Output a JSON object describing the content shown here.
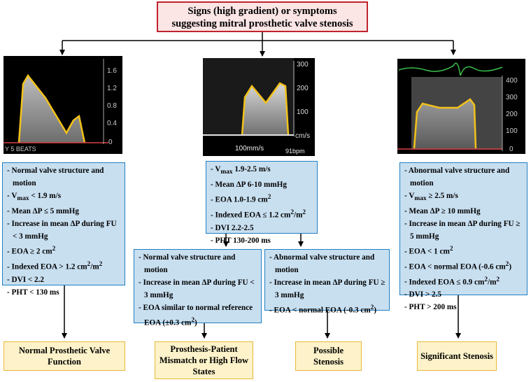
{
  "header": {
    "line1": "Signs (high gradient) or symptoms",
    "line2": "suggesting mitral prosthetic valve stenosis"
  },
  "images": {
    "left": {
      "scale_labels": [
        "1.6",
        "1.2",
        "0.8",
        "0.4",
        "0"
      ],
      "footer": "Y  5  BEATS"
    },
    "middle": {
      "scale_labels": [
        "300",
        "200",
        "100",
        "cm/s"
      ],
      "sweep": "100mm/s",
      "rate": "91bpm"
    },
    "right": {
      "scale_labels": [
        "400",
        "300",
        "200",
        "100",
        "0"
      ]
    }
  },
  "boxes": {
    "normal": [
      "Normal valve structure and motion",
      "V<sub>max</sub> < 1.9 m/s",
      "Mean ΔP ≤ 5 mmHg",
      "Increase in mean ΔP during FU < 3 mmHg",
      "EOA ≥ 2 cm<sup>2</sup>",
      "Indexed EOA > 1.2 cm<sup>2</sup>/m<sup>2</sup>",
      "DVI < 2.2",
      "PHT < 130 ms"
    ],
    "middle": [
      "V<sub>max</sub> 1.9-2.5 m/s",
      "Mean ΔP 6-10 mmHg",
      "EOA 1.0-1.9 cm<sup>2</sup>",
      "Indexed EOA ≤ 1.2 cm<sup>2</sup>/m<sup>2</sup>",
      "DVI 2.2-2.5",
      "PHT 130-200 ms"
    ],
    "mismatch": [
      "Normal valve structure and motion",
      "Increase in mean ΔP during FU < 3 mmHg",
      "EOA similar to normal reference EOA (±0.3 cm<sup>2</sup>)"
    ],
    "possible": [
      "Abnormal valve structure and motion",
      "Increase in mean ΔP during FU ≥ 3 mmHg",
      "EOA < normal EOA (-0.3 cm<sup>2</sup>)"
    ],
    "significant": [
      "Abnormal valve structure and motion",
      "V<sub>max</sub> ≥ 2.5 m/s",
      "Mean ΔP ≥ 10 mmHg",
      "Increase in mean ΔP during FU ≥ 5 mmHg",
      "EOA < 1 cm<sup>2</sup>",
      "EOA < normal EOA (-0.6 cm<sup>2</sup>)",
      "Indexed EOA ≤ 0.9 cm<sup>2</sup>/m<sup>2</sup>",
      "DVI > 2.5",
      "PHT > 200 ms"
    ]
  },
  "outcomes": {
    "normal": "Normal Prosthetic Valve Function",
    "mismatch": "Prosthesis-Patient Mismatch or High Flow States",
    "possible": "Possible Stenosis",
    "significant": "Significant Stenosis"
  },
  "colors": {
    "header_border": "#c0232d",
    "header_fill": "#fbe5e5",
    "info_border": "#1f7fc4",
    "info_fill": "#c8dff0",
    "outcome_border": "#e8b937",
    "outcome_fill": "#fdf2c9",
    "trace": "#f2c21b"
  }
}
